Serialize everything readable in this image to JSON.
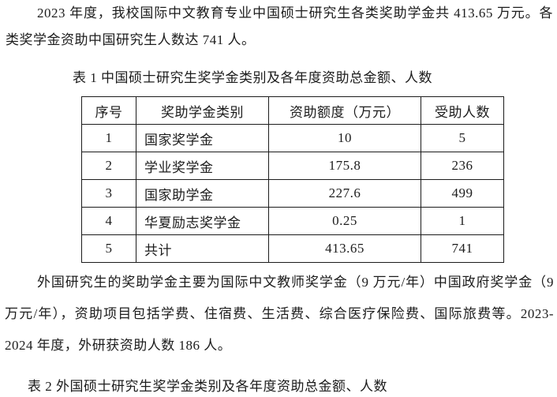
{
  "colors": {
    "background": "#ffffff",
    "text": "#1c1c1c",
    "table_border": "#1c1c1c"
  },
  "document": {
    "paragraph_top": "2023 年度，我校国际中文教育专业中国硕士研究生各类奖助学金共 413.65 万元。各类奖学金资助中国研究生人数达 741 人。",
    "table1": {
      "caption": "表 1 中国硕士研究生奖学金类别及各年度资助总金额、人数",
      "headers": [
        "序号",
        "奖助学金类别",
        "资助额度（万元）",
        "受助人数"
      ],
      "rows": [
        [
          "1",
          "国家奖学金",
          "10",
          "5"
        ],
        [
          "2",
          "学业奖学金",
          "175.8",
          "236"
        ],
        [
          "3",
          "国家助学金",
          "227.6",
          "499"
        ],
        [
          "4",
          "华夏励志奖学金",
          "0.25",
          "1"
        ],
        [
          "5",
          "共计",
          "413.65",
          "741"
        ]
      ]
    },
    "paragraph_middle": "外国研究生的奖助学金主要为国际中文教师奖学金（9 万元/年）中国政府奖学金（9 万元/年），资助项目包括学费、住宿费、生活费、综合医疗保险费、国际旅费等。2023-2024 年度，外研获资助人数 186 人。",
    "table2_caption": "表 2 外国硕士研究生奖学金类别及各年度资助总金额、人数"
  }
}
